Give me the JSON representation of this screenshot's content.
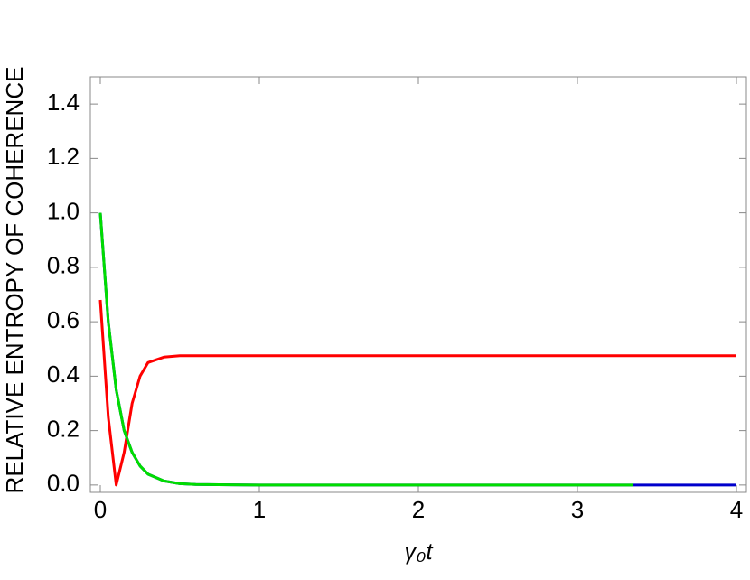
{
  "chart_data": {
    "type": "line",
    "xlabel": "γ₀t",
    "ylabel": "RELATIVE ENTROPY OF COHERENCE",
    "x": [
      0,
      0.05,
      0.1,
      0.15,
      0.2,
      0.25,
      0.3,
      0.4,
      0.5,
      0.6,
      1,
      2,
      3,
      3.35,
      4
    ],
    "series": [
      {
        "color": "#ff0000",
        "values": [
          0.68,
          0.25,
          0.0,
          0.12,
          0.3,
          0.4,
          0.45,
          0.47,
          0.475,
          0.475,
          0.475,
          0.475,
          0.475,
          0.475,
          0.475
        ]
      },
      {
        "color": "#0000cc",
        "values": [
          1.0,
          0.6,
          0.35,
          0.2,
          0.12,
          0.07,
          0.04,
          0.015,
          0.005,
          0.002,
          0,
          0,
          0,
          0,
          0
        ]
      },
      {
        "color": "#00dd00",
        "values": [
          1.0,
          0.6,
          0.35,
          0.2,
          0.12,
          0.07,
          0.04,
          0.015,
          0.005,
          0.002,
          0,
          0,
          0,
          0,
          null
        ]
      }
    ],
    "xlim": [
      -0.0625,
      4.0625
    ],
    "ylim": [
      -0.027,
      1.5
    ],
    "xticks": [
      0,
      1,
      2,
      3,
      4
    ],
    "yticks": [
      {
        "value": 0,
        "label": "0.0"
      },
      0.2,
      0.4,
      0.6,
      0.8,
      {
        "value": 1,
        "label": "1.0"
      },
      1.2,
      1.4
    ]
  }
}
